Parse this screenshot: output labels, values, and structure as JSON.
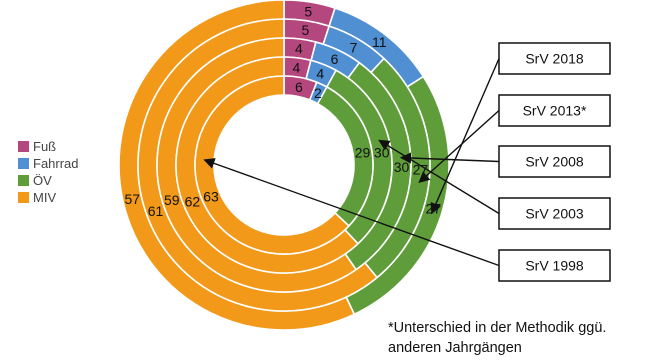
{
  "chart_data": {
    "type": "pie",
    "style": "nested-donut",
    "categories": [
      "Fuß",
      "Fahrrad",
      "ÖV",
      "MIV"
    ],
    "colors": {
      "Fuß": "#b5477f",
      "Fahrrad": "#4f8fd2",
      "ÖV": "#5f9d3b",
      "MIV": "#f2991a"
    },
    "series": [
      {
        "name": "SrV 2018",
        "values": [
          5,
          11,
          27,
          57
        ]
      },
      {
        "name": "SrV 2013*",
        "values": [
          5,
          7,
          27,
          61
        ]
      },
      {
        "name": "SrV 2008",
        "values": [
          4,
          6,
          30,
          59
        ]
      },
      {
        "name": "SrV 2003",
        "values": [
          4,
          4,
          30,
          62
        ]
      },
      {
        "name": "SrV 1998",
        "values": [
          6,
          2,
          29,
          63
        ]
      }
    ],
    "legend_position": "left",
    "footnote": "*Unterschied in der Methodik ggü.\nanderen Jahrgängen"
  }
}
